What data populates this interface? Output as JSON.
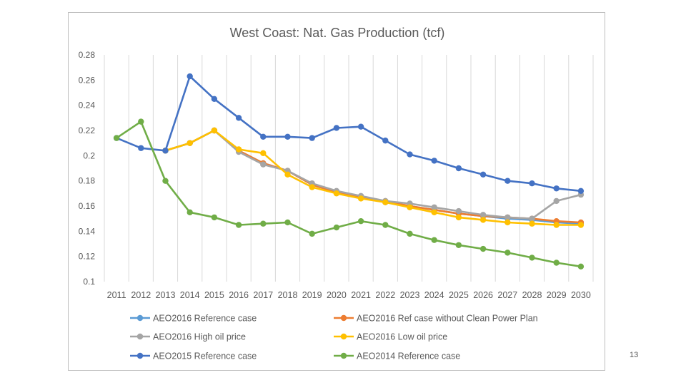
{
  "slide": {
    "page_number": "13"
  },
  "chart_data": {
    "type": "line",
    "title": "West Coast: Nat. Gas Production (tcf)",
    "xlabel": "",
    "ylabel": "",
    "categories": [
      "2011",
      "2012",
      "2013",
      "2014",
      "2015",
      "2016",
      "2017",
      "2018",
      "2019",
      "2020",
      "2021",
      "2022",
      "2023",
      "2024",
      "2025",
      "2026",
      "2027",
      "2028",
      "2029",
      "2030"
    ],
    "ylim": [
      0.1,
      0.28
    ],
    "yticks": [
      0.1,
      0.12,
      0.14,
      0.16,
      0.18,
      0.2,
      0.22,
      0.24,
      0.26,
      0.28
    ],
    "ytick_labels": [
      "0.1",
      "0.12",
      "0.14",
      "0.16",
      "0.18",
      "0.2",
      "0.22",
      "0.24",
      "0.26",
      "0.28"
    ],
    "grid": "vertical",
    "legend_position": "bottom",
    "series": [
      {
        "name": "AEO2016 Reference case",
        "color": "#5b9bd5",
        "values": [
          null,
          null,
          0.204,
          0.21,
          0.22,
          0.204,
          0.194,
          0.188,
          0.177,
          0.171,
          0.167,
          0.163,
          0.16,
          0.157,
          0.154,
          0.152,
          0.15,
          0.149,
          0.147,
          0.146
        ]
      },
      {
        "name": "AEO2016 Ref case without Clean Power Plan",
        "color": "#ed7d31",
        "values": [
          null,
          null,
          0.204,
          0.21,
          0.22,
          0.204,
          0.194,
          0.188,
          0.177,
          0.171,
          0.167,
          0.164,
          0.16,
          0.157,
          0.154,
          0.152,
          0.151,
          0.15,
          0.148,
          0.147
        ]
      },
      {
        "name": "AEO2016 High oil price",
        "color": "#a5a5a5",
        "values": [
          null,
          null,
          0.204,
          0.21,
          0.22,
          0.203,
          0.193,
          0.188,
          0.178,
          0.172,
          0.168,
          0.164,
          0.162,
          0.159,
          0.156,
          0.153,
          0.151,
          0.15,
          0.164,
          0.169
        ]
      },
      {
        "name": "AEO2016 Low oil price",
        "color": "#ffc000",
        "values": [
          null,
          null,
          0.204,
          0.21,
          0.22,
          0.205,
          0.202,
          0.185,
          0.175,
          0.17,
          0.166,
          0.163,
          0.159,
          0.155,
          0.151,
          0.149,
          0.147,
          0.146,
          0.145,
          0.145
        ]
      },
      {
        "name": "AEO2015 Reference case",
        "color": "#4472c4",
        "values": [
          0.214,
          0.206,
          0.204,
          0.263,
          0.245,
          0.23,
          0.215,
          0.215,
          0.214,
          0.222,
          0.223,
          0.212,
          0.201,
          0.196,
          0.19,
          0.185,
          0.18,
          0.178,
          0.174,
          0.172
        ]
      },
      {
        "name": "AEO2014 Reference case",
        "color": "#70ad47",
        "values": [
          0.214,
          0.227,
          0.18,
          0.155,
          0.151,
          0.145,
          0.146,
          0.147,
          0.138,
          0.143,
          0.148,
          0.145,
          0.138,
          0.133,
          0.129,
          0.126,
          0.123,
          0.119,
          0.115,
          0.112
        ]
      }
    ]
  }
}
